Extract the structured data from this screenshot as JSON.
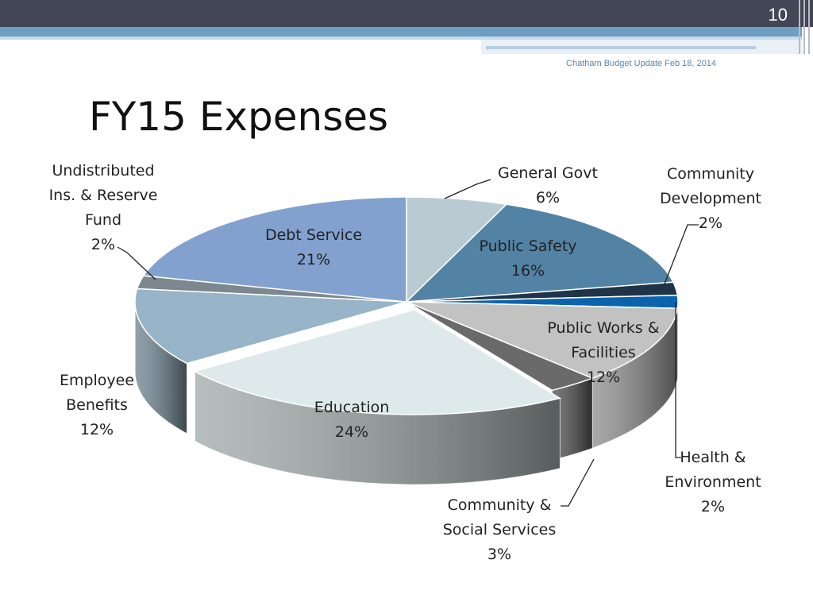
{
  "slide": {
    "number": "10",
    "subtitle": "Chatham Budget Update Feb 18, 2014",
    "title": "FY15 Expenses"
  },
  "colors": {
    "header_bar": "#434656",
    "accent_band": "#6f9ec3"
  },
  "chart_data": {
    "type": "pie",
    "style": "3d-exploded",
    "title": "",
    "slices": [
      {
        "label": "General Govt",
        "value": 6,
        "display": "6%",
        "color": "#b9cad2"
      },
      {
        "label": "Public Safety",
        "value": 16,
        "display": "16%",
        "color": "#5283a4"
      },
      {
        "label": "Community Development",
        "value": 2,
        "display": "2%",
        "color": "#1f3448"
      },
      {
        "label": "Health & Environment",
        "value": 2,
        "display": "2%",
        "color": "#0c63ad"
      },
      {
        "label": "Public Works & Facilities",
        "value": 12,
        "display": "12%",
        "color": "#c2c2c2"
      },
      {
        "label": "Community & Social Services",
        "value": 3,
        "display": "3%",
        "color": "#6a6a6a"
      },
      {
        "label": "Education",
        "value": 24,
        "display": "24%",
        "color": "#dde9ea"
      },
      {
        "label": "Employee Benefits",
        "value": 12,
        "display": "12%",
        "color": "#97b4c8"
      },
      {
        "label": "Undistributed Ins. & Reserve Fund",
        "value": 2,
        "display": "2%",
        "color": "#7d8790"
      },
      {
        "label": "Debt Service",
        "value": 21,
        "display": "21%",
        "color": "#82a1cf"
      }
    ],
    "label_lines": {
      "General Govt": [
        "General Govt"
      ],
      "Public Safety": [
        "Public Safety"
      ],
      "Community Development": [
        "Community",
        "Development"
      ],
      "Health & Environment": [
        "Health &",
        "Environment"
      ],
      "Public Works & Facilities": [
        "Public Works &",
        "Facilities"
      ],
      "Community & Social Services": [
        "Community &",
        "Social Services"
      ],
      "Education": [
        "Education"
      ],
      "Employee Benefits": [
        "Employee",
        "Benefits"
      ],
      "Undistributed Ins. & Reserve Fund": [
        "Undistributed",
        "Ins. & Reserve",
        "Fund"
      ],
      "Debt Service": [
        "Debt Service"
      ]
    }
  }
}
